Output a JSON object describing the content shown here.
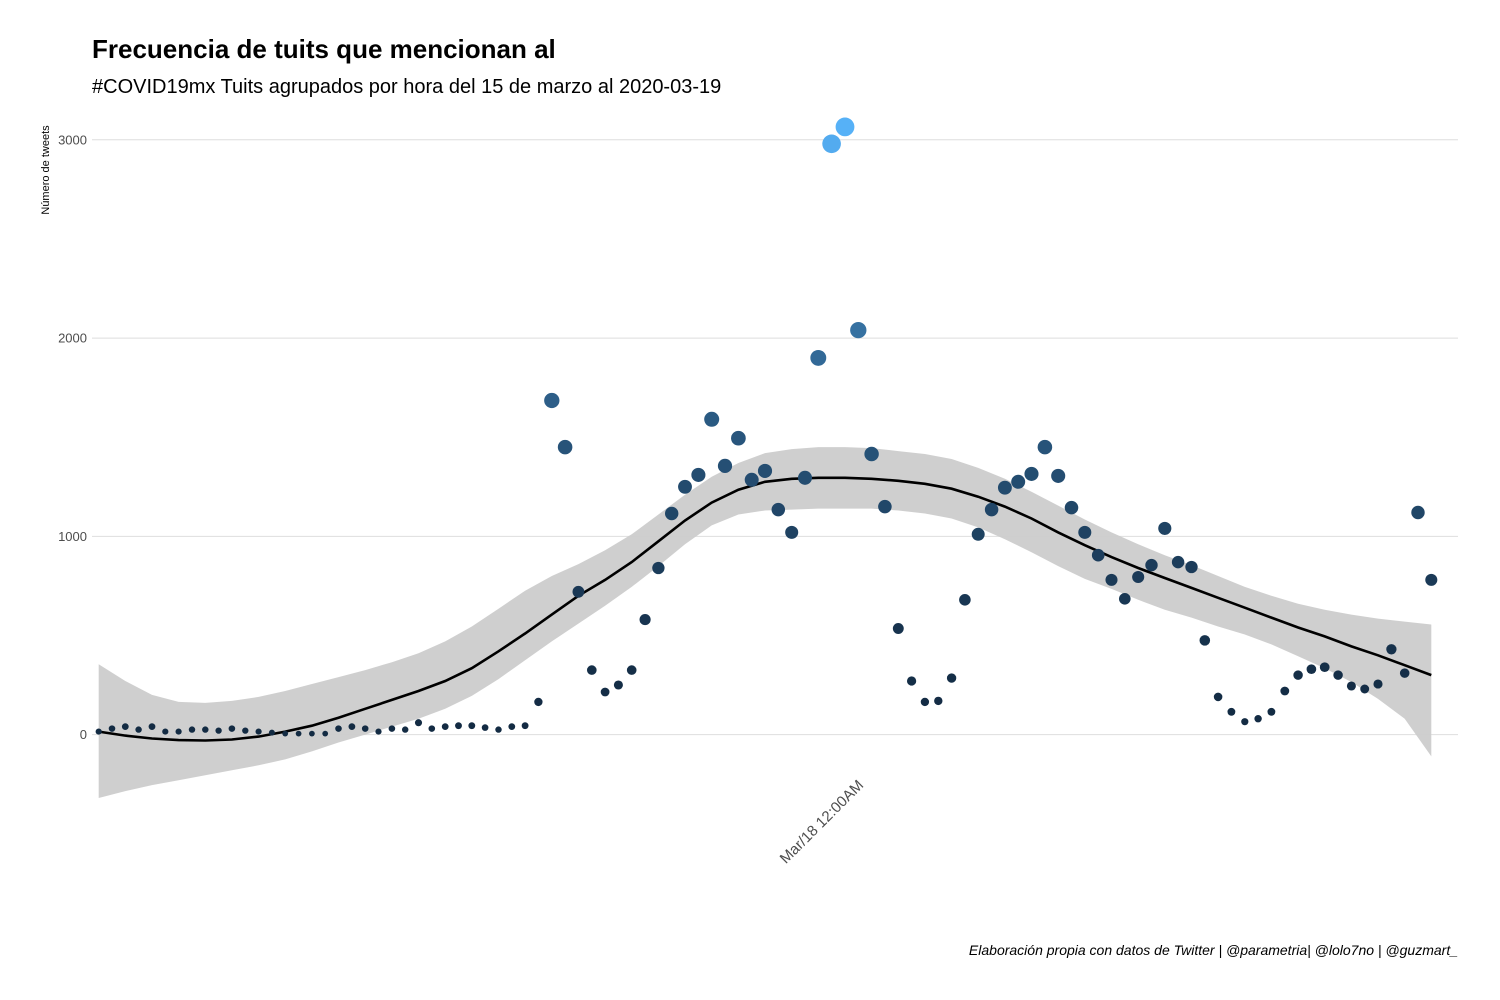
{
  "chart_data": {
    "type": "scatter",
    "title": "Frecuencia de tuits que mencionan al",
    "subtitle": "#COVID19mx Tuits agrupados por hora del 15 de marzo al 2020-03-19",
    "ylabel": "Número de tweets",
    "xlabel": "",
    "caption": "Elaboración propia con datos de Twitter | @parametria| @lolo7no | @guzmart_",
    "ylim": [
      -330,
      3110
    ],
    "yticks": [
      0,
      1000,
      2000,
      3000
    ],
    "ytick_labels": [
      "0",
      "1000",
      "2000",
      "3000"
    ],
    "xlim": [
      -0.5,
      102
    ],
    "x_unit": "hour index (hourly bins)",
    "xtick_positions": [
      57
    ],
    "xtick_labels": [
      "Mar/18 12:00AM"
    ],
    "grid": true,
    "colors": {
      "point_low": "#132b43",
      "point_high": "#56b1f7",
      "smooth_line": "#000000",
      "ribbon": "#cccccc"
    },
    "series": [
      {
        "type": "scatter",
        "x": [
          0,
          1,
          2,
          3,
          4,
          5,
          6,
          7,
          8,
          9,
          10,
          11,
          12,
          13,
          14,
          15,
          16,
          17,
          18,
          19,
          20,
          21,
          22,
          23,
          24,
          25,
          26,
          27,
          28,
          29,
          30,
          31,
          32,
          33,
          34,
          35,
          36,
          37,
          38,
          39,
          40,
          41,
          42,
          43,
          44,
          45,
          46,
          47,
          48,
          49,
          50,
          51,
          52,
          53,
          54,
          55,
          56,
          57,
          58,
          59,
          60,
          61,
          62,
          63,
          64,
          65,
          66,
          67,
          68,
          69,
          70,
          71,
          72,
          73,
          74,
          75,
          76,
          77,
          78,
          79,
          80,
          81,
          82,
          83,
          84,
          85,
          86,
          87,
          88,
          89,
          90,
          91,
          92,
          93,
          94,
          95,
          96,
          97,
          98,
          99,
          100
        ],
        "y": [
          15,
          30,
          40,
          25,
          40,
          15,
          15,
          25,
          25,
          20,
          30,
          20,
          15,
          10,
          5,
          5,
          5,
          5,
          30,
          40,
          30,
          15,
          30,
          25,
          60,
          30,
          40,
          45,
          45,
          35,
          25,
          40,
          45,
          165,
          1685,
          1450,
          720,
          325,
          215,
          250,
          325,
          580,
          840,
          1115,
          1250,
          1310,
          1590,
          1355,
          1495,
          1285,
          1330,
          1135,
          1020,
          1295,
          1900,
          2980,
          3065,
          2040,
          1415,
          1150,
          535,
          270,
          165,
          170,
          285,
          680,
          1010,
          1135,
          1245,
          1275,
          1315,
          1450,
          1305,
          1145,
          1020,
          905,
          780,
          685,
          795,
          855,
          1040,
          870,
          845,
          475,
          190,
          115,
          65,
          80,
          115,
          220,
          300,
          330,
          340,
          300,
          245,
          230,
          255,
          430,
          310,
          1120,
          780
        ]
      },
      {
        "type": "line",
        "name": "loess",
        "x": [
          0,
          2,
          4,
          6,
          8,
          10,
          12,
          14,
          16,
          18,
          20,
          22,
          24,
          26,
          28,
          30,
          32,
          34,
          36,
          38,
          40,
          42,
          44,
          46,
          48,
          50,
          52,
          54,
          56,
          58,
          60,
          62,
          64,
          66,
          68,
          70,
          72,
          74,
          76,
          78,
          80,
          82,
          84,
          86,
          88,
          90,
          92,
          94,
          96,
          98,
          100
        ],
        "y": [
          15,
          -5,
          -20,
          -28,
          -30,
          -25,
          -10,
          15,
          45,
          85,
          130,
          175,
          220,
          270,
          335,
          420,
          510,
          605,
          700,
          780,
          870,
          975,
          1080,
          1170,
          1235,
          1275,
          1290,
          1295,
          1295,
          1290,
          1280,
          1265,
          1240,
          1200,
          1150,
          1090,
          1020,
          955,
          895,
          840,
          790,
          740,
          690,
          640,
          590,
          540,
          495,
          445,
          400,
          350,
          300
        ]
      }
    ],
    "ribbon": {
      "x": [
        0,
        2,
        4,
        6,
        8,
        10,
        12,
        14,
        16,
        18,
        20,
        22,
        24,
        26,
        28,
        30,
        32,
        34,
        36,
        38,
        40,
        42,
        44,
        46,
        48,
        50,
        52,
        54,
        56,
        58,
        60,
        62,
        64,
        66,
        68,
        70,
        72,
        74,
        76,
        78,
        80,
        82,
        84,
        86,
        88,
        90,
        92,
        94,
        96,
        98,
        100
      ],
      "upper": [
        355,
        270,
        200,
        165,
        160,
        170,
        190,
        220,
        255,
        290,
        325,
        365,
        410,
        470,
        545,
        635,
        725,
        800,
        860,
        930,
        1010,
        1110,
        1210,
        1300,
        1370,
        1420,
        1440,
        1450,
        1450,
        1445,
        1430,
        1415,
        1390,
        1345,
        1290,
        1225,
        1155,
        1085,
        1020,
        960,
        905,
        855,
        800,
        745,
        700,
        660,
        630,
        605,
        585,
        570,
        555
      ],
      "lower": [
        -320,
        -285,
        -255,
        -230,
        -205,
        -180,
        -155,
        -125,
        -85,
        -40,
        0,
        40,
        80,
        130,
        195,
        280,
        375,
        470,
        560,
        650,
        745,
        850,
        960,
        1055,
        1110,
        1130,
        1135,
        1140,
        1140,
        1140,
        1130,
        1115,
        1090,
        1045,
        985,
        920,
        850,
        785,
        735,
        680,
        630,
        590,
        545,
        505,
        455,
        395,
        335,
        265,
        180,
        80,
        -110
      ]
    }
  }
}
